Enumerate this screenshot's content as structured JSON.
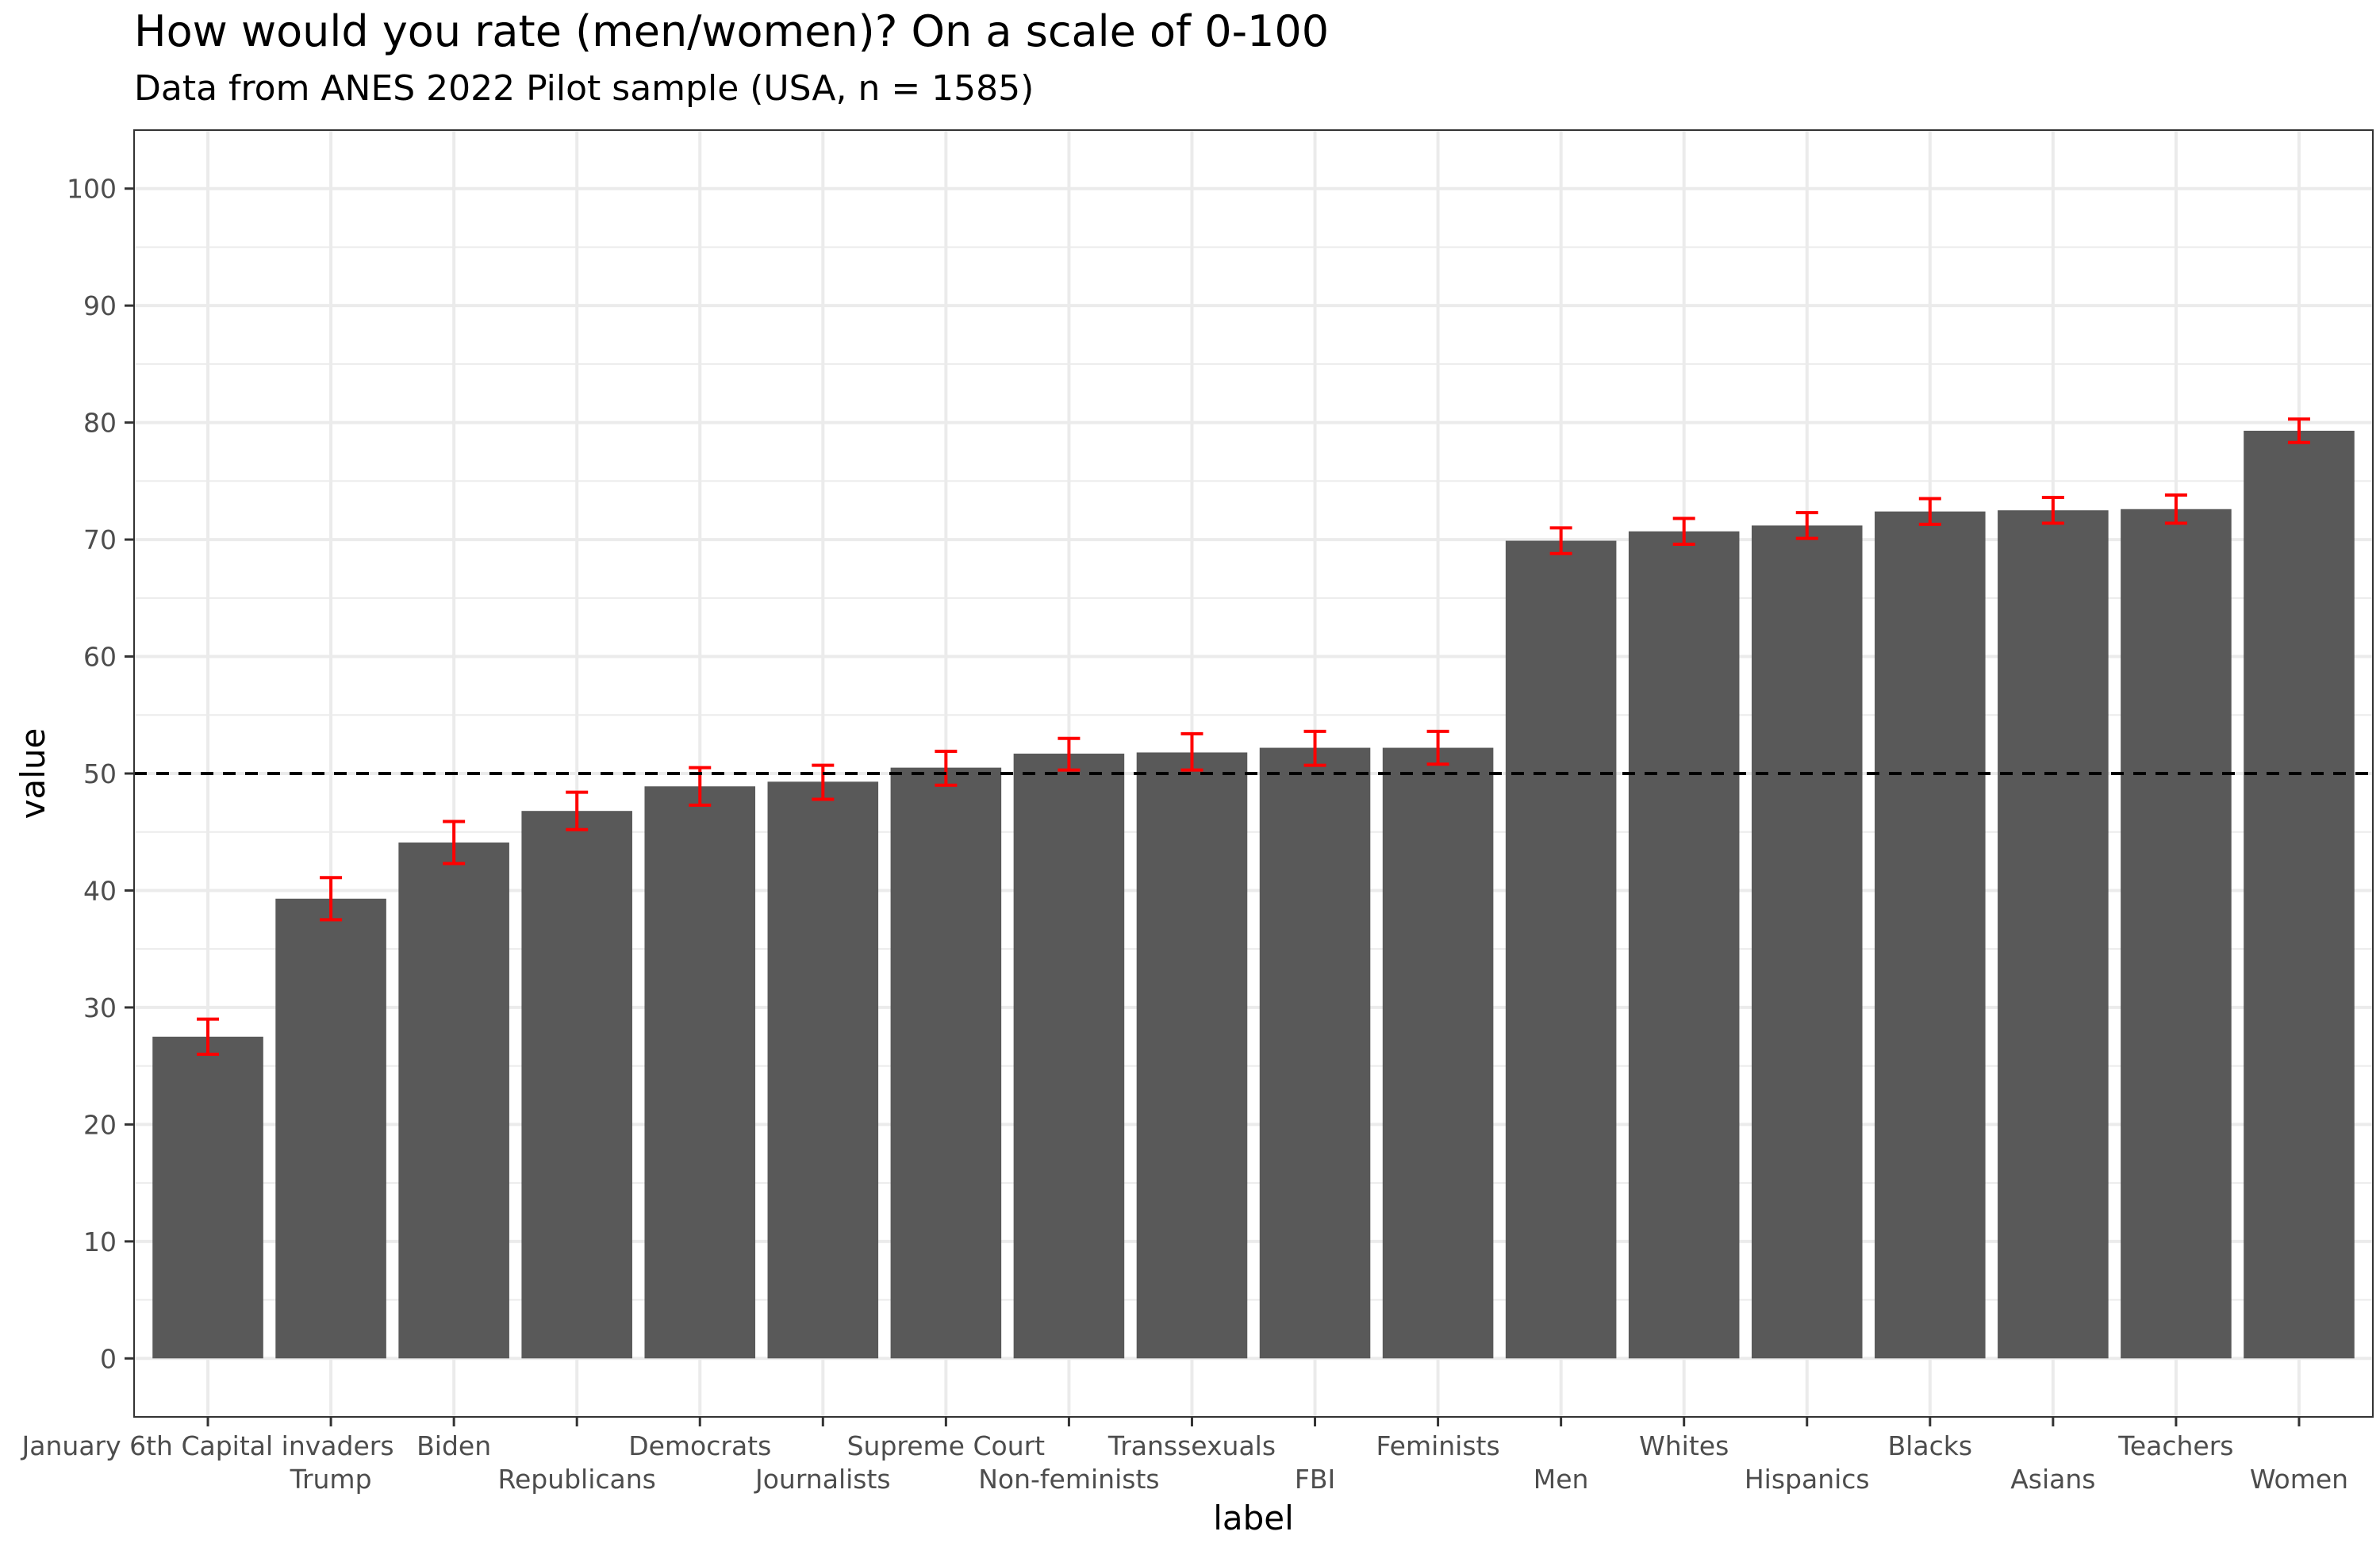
{
  "chart_data": {
    "type": "bar",
    "title": "How would you rate (men/women)? On a scale of 0-100",
    "subtitle": "Data from ANES 2022 Pilot sample (USA, n = 1585)",
    "xlabel": "label",
    "ylabel": "value",
    "ylim": [
      -5,
      105
    ],
    "yticks": [
      0,
      10,
      20,
      30,
      40,
      50,
      60,
      70,
      80,
      90,
      100
    ],
    "grid": true,
    "reference_line": 50,
    "categories": [
      "January 6th Capital invaders",
      "Trump",
      "Biden",
      "Republicans",
      "Democrats",
      "Journalists",
      "Supreme Court",
      "Non-feminists",
      "Transsexuals",
      "FBI",
      "Feminists",
      "Men",
      "Whites",
      "Hispanics",
      "Blacks",
      "Asians",
      "Teachers",
      "Women"
    ],
    "values": [
      27.5,
      39.3,
      44.1,
      46.8,
      48.9,
      49.3,
      50.5,
      51.7,
      51.8,
      52.2,
      52.2,
      69.9,
      70.7,
      71.2,
      72.4,
      72.5,
      72.6,
      79.3
    ],
    "error_low": [
      26.0,
      37.5,
      42.3,
      45.2,
      47.3,
      47.8,
      49.0,
      50.3,
      50.3,
      50.7,
      50.8,
      68.8,
      69.6,
      70.1,
      71.3,
      71.4,
      71.4,
      78.3
    ],
    "error_high": [
      29.0,
      41.1,
      45.9,
      48.4,
      50.5,
      50.7,
      51.9,
      53.0,
      53.4,
      53.6,
      53.6,
      71.0,
      71.8,
      72.3,
      73.5,
      73.6,
      73.8,
      80.3
    ],
    "colors": {
      "bar": "#595959",
      "error_bar": "#ff0000",
      "reference_line": "#000000",
      "grid": "#ebebeb"
    }
  }
}
